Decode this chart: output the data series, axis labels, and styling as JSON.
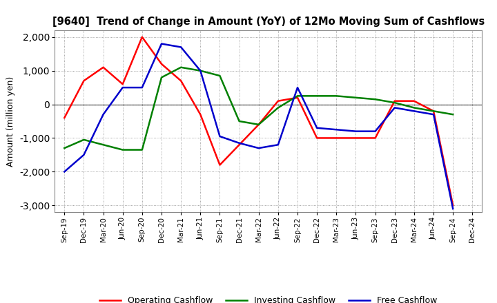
{
  "title": "[9640]  Trend of Change in Amount (YoY) of 12Mo Moving Sum of Cashflows",
  "ylabel": "Amount (million yen)",
  "x_labels": [
    "Sep-19",
    "Dec-19",
    "Mar-20",
    "Jun-20",
    "Sep-20",
    "Dec-20",
    "Mar-21",
    "Jun-21",
    "Sep-21",
    "Dec-21",
    "Mar-22",
    "Jun-22",
    "Sep-22",
    "Dec-22",
    "Mar-23",
    "Jun-23",
    "Sep-23",
    "Dec-23",
    "Mar-24",
    "Jun-24",
    "Sep-24",
    "Dec-24"
  ],
  "operating": [
    -400,
    700,
    1100,
    600,
    2000,
    1200,
    700,
    -300,
    -1800,
    -1200,
    -600,
    100,
    200,
    -1000,
    -1000,
    -1000,
    -1000,
    100,
    100,
    -200,
    -3000,
    null
  ],
  "investing": [
    -1300,
    -1050,
    -1200,
    -1350,
    -1350,
    800,
    1100,
    1000,
    850,
    -500,
    -600,
    -100,
    250,
    250,
    250,
    200,
    150,
    50,
    -100,
    -200,
    -300,
    null
  ],
  "free": [
    -2000,
    -1500,
    -300,
    500,
    500,
    1800,
    1700,
    1000,
    -950,
    -1150,
    -1300,
    -1200,
    500,
    -700,
    -750,
    -800,
    -800,
    -100,
    -200,
    -300,
    -3100,
    null
  ],
  "ylim": [
    -3200,
    2200
  ],
  "yticks": [
    -3000,
    -2000,
    -1000,
    0,
    1000,
    2000
  ],
  "operating_color": "#FF0000",
  "investing_color": "#008000",
  "free_color": "#0000CC",
  "background_color": "#FFFFFF",
  "grid_color": "#888888"
}
